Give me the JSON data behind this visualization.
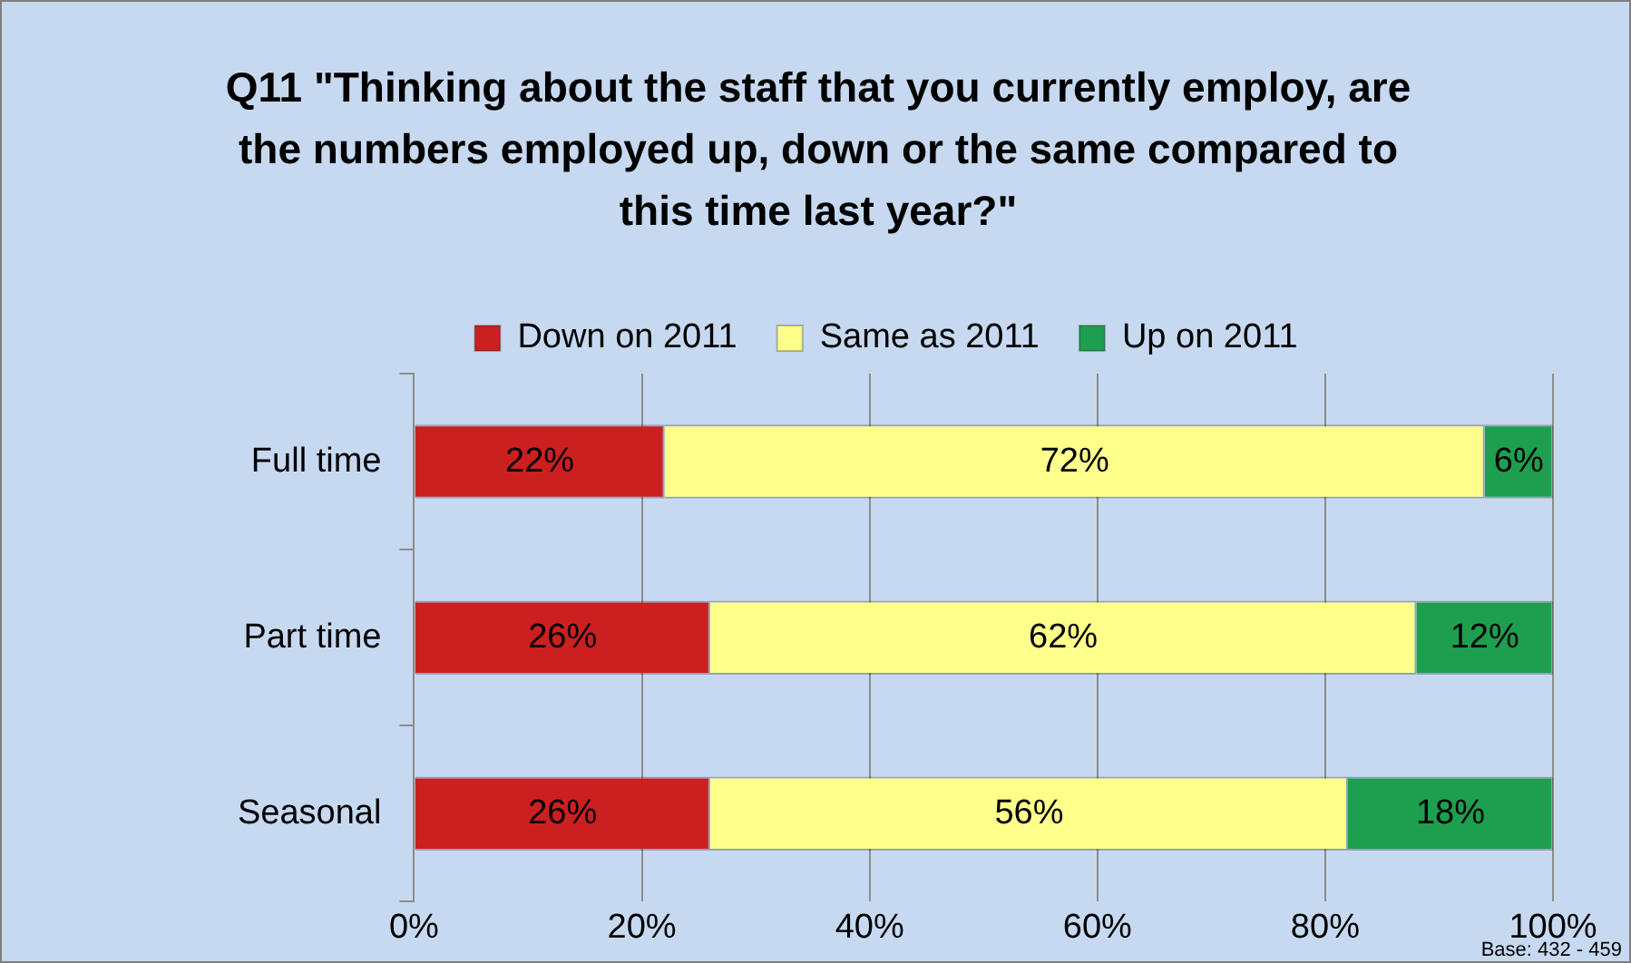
{
  "chart_data": {
    "type": "bar",
    "orientation": "horizontal",
    "stacked": true,
    "title": "Q11 \"Thinking about the staff that you currently employ, are the numbers employed up, down or the same compared to this time last year?\"",
    "categories": [
      "Full time",
      "Part time",
      "Seasonal"
    ],
    "series": [
      {
        "name": "Down on 2011",
        "color": "#cc1f1f",
        "values": [
          22,
          26,
          26
        ],
        "value_labels": [
          "22%",
          "26%",
          "26%"
        ]
      },
      {
        "name": "Same as 2011",
        "color": "#ffff8c",
        "values": [
          72,
          62,
          56
        ],
        "value_labels": [
          "72%",
          "62%",
          "56%"
        ]
      },
      {
        "name": "Up on 2011",
        "color": "#1e9e4f",
        "values": [
          6,
          12,
          18
        ],
        "value_labels": [
          "6%",
          "12%",
          "18%"
        ]
      }
    ],
    "xlim": [
      0,
      100
    ],
    "xticks": [
      {
        "value": 0,
        "label": "0%"
      },
      {
        "value": 20,
        "label": "20%"
      },
      {
        "value": 40,
        "label": "40%"
      },
      {
        "value": 60,
        "label": "60%"
      },
      {
        "value": 80,
        "label": "80%"
      },
      {
        "value": 100,
        "label": "100%"
      }
    ],
    "grid": "x",
    "legend": "top",
    "annotations": [
      "Base: 432 - 459"
    ]
  }
}
